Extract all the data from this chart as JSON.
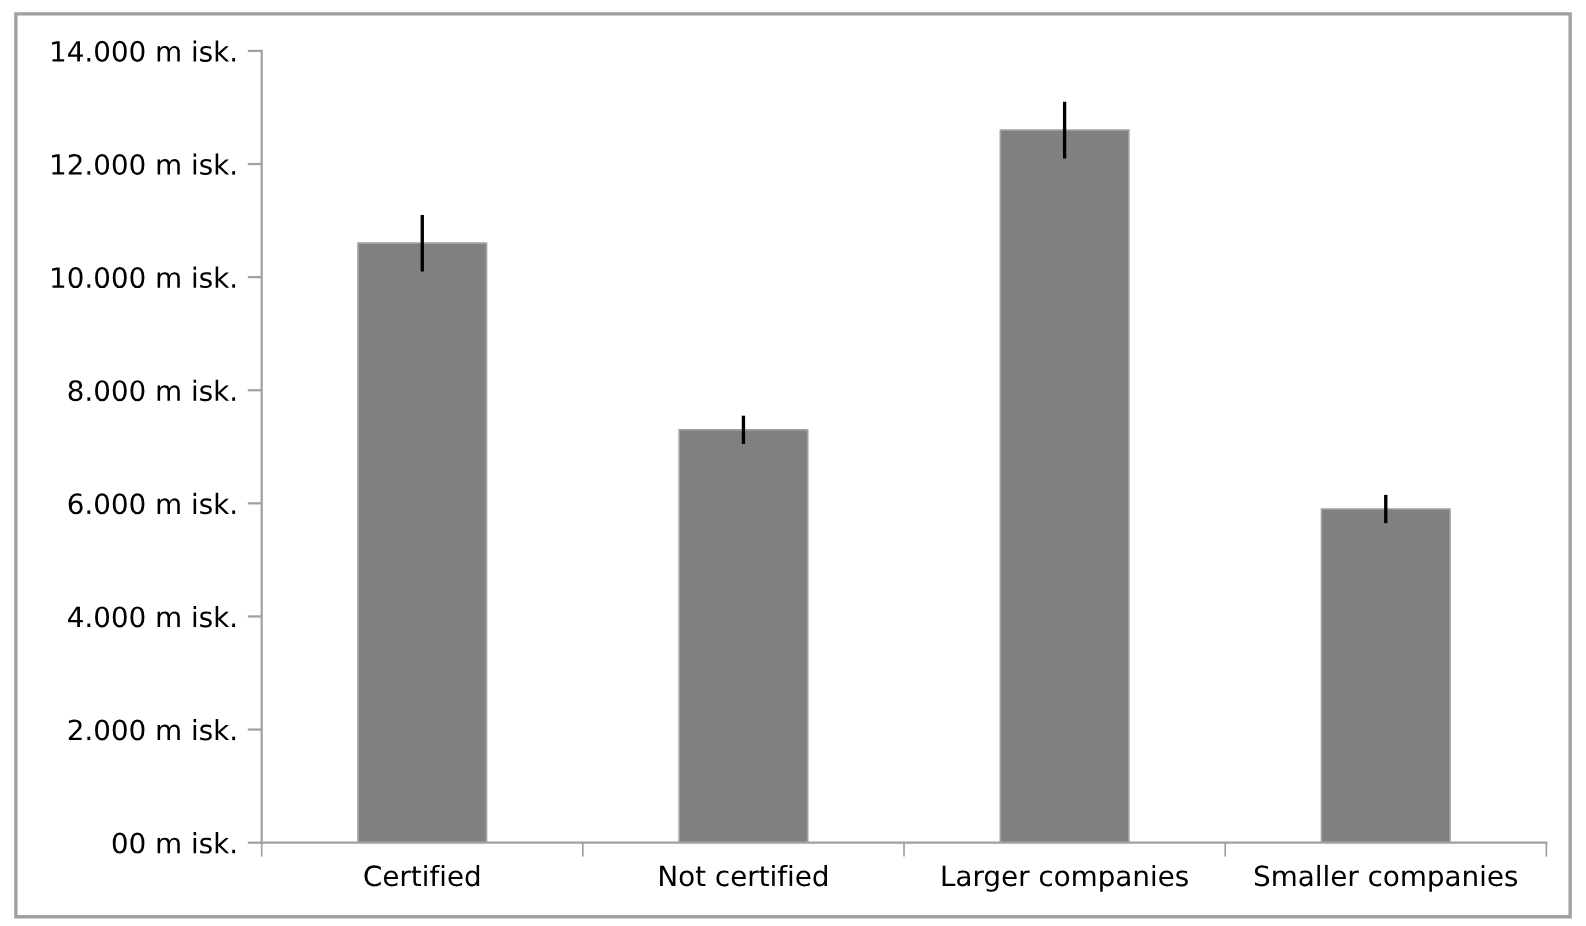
{
  "chart_data": {
    "type": "bar",
    "categories": [
      "Certified",
      "Not certified",
      "Larger companies",
      "Smaller companies"
    ],
    "values": [
      10.6,
      7.3,
      12.6,
      5.9
    ],
    "errors": [
      0.5,
      0.25,
      0.5,
      0.25
    ],
    "color": "#808080",
    "ylim": [
      0,
      14
    ],
    "yticks": [
      {
        "value": 0,
        "label": "00 m isk."
      },
      {
        "value": 2,
        "label": "2.000 m isk."
      },
      {
        "value": 4,
        "label": "4.000 m isk."
      },
      {
        "value": 6,
        "label": "6.000 m isk."
      },
      {
        "value": 8,
        "label": "8.000 m isk."
      },
      {
        "value": 10,
        "label": "10.000 m isk."
      },
      {
        "value": 12,
        "label": "12.000 m isk."
      },
      {
        "value": 14,
        "label": "14.000 m isk."
      }
    ],
    "grid": false,
    "legend": false
  }
}
